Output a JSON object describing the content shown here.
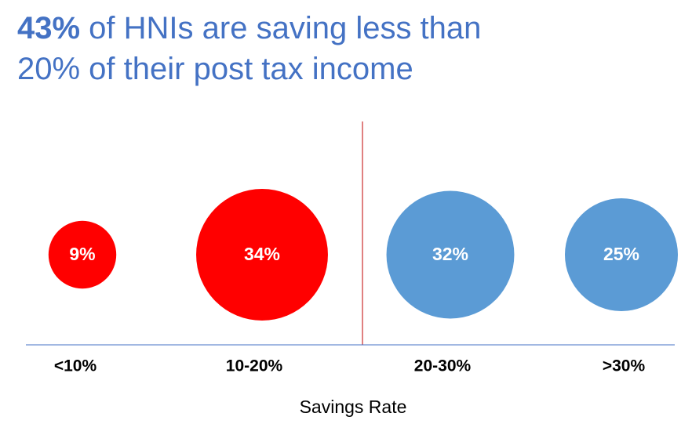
{
  "chart_data": {
    "type": "bubble",
    "title_lead": "43%",
    "title": "of HNIs are saving less than 20% of their post tax income",
    "x_label": "Savings Rate",
    "categories": [
      "<10%",
      "10-20%",
      "20-30%",
      ">30%"
    ],
    "values": [
      9,
      34,
      32,
      25
    ],
    "value_labels": [
      "9%",
      "34%",
      "32%",
      "25%"
    ],
    "colors": [
      "#ff0000",
      "#ff0000",
      "#5b9bd5",
      "#5b9bd5"
    ]
  }
}
